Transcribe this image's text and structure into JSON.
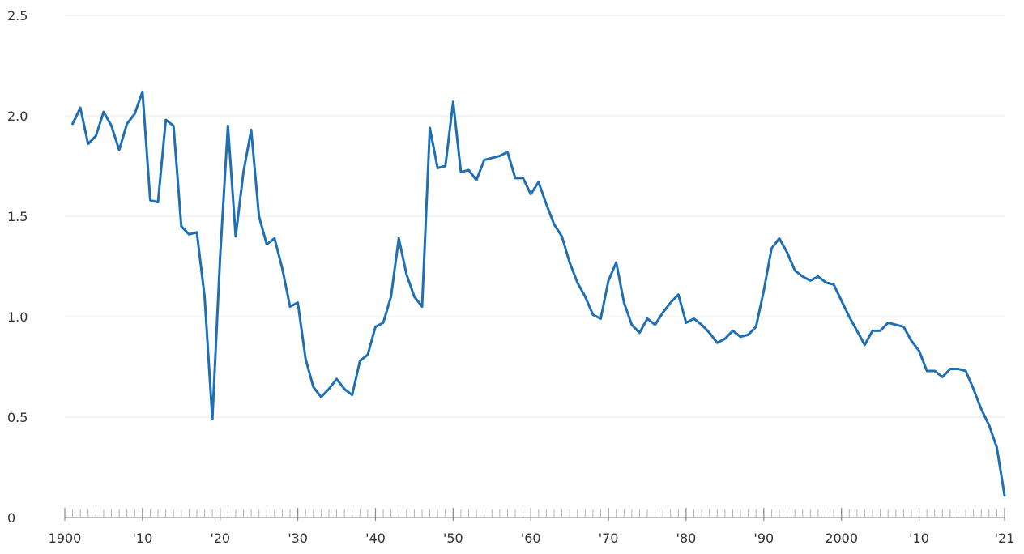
{
  "chart_data": {
    "type": "line",
    "title": "",
    "xlabel": "",
    "ylabel": "",
    "xlim": [
      1900,
      2021
    ],
    "ylim": [
      0,
      2.5
    ],
    "grid": true,
    "legend": "none",
    "line_color": "#1f6fb5",
    "y_ticks": [
      {
        "value": 0,
        "label": "0"
      },
      {
        "value": 0.5,
        "label": "0.5"
      },
      {
        "value": 1.0,
        "label": "1.0"
      },
      {
        "value": 1.5,
        "label": "1.5"
      },
      {
        "value": 2.0,
        "label": "2.0"
      },
      {
        "value": 2.5,
        "label": "2.5"
      }
    ],
    "x_ticks": [
      {
        "value": 1900,
        "label": "1900"
      },
      {
        "value": 1910,
        "label": "'10"
      },
      {
        "value": 1920,
        "label": "'20"
      },
      {
        "value": 1930,
        "label": "'30"
      },
      {
        "value": 1940,
        "label": "'40"
      },
      {
        "value": 1950,
        "label": "'50"
      },
      {
        "value": 1960,
        "label": "'60"
      },
      {
        "value": 1970,
        "label": "'70"
      },
      {
        "value": 1980,
        "label": "'80"
      },
      {
        "value": 1990,
        "label": "'90"
      },
      {
        "value": 2000,
        "label": "2000"
      },
      {
        "value": 2010,
        "label": "'10"
      },
      {
        "value": 2021,
        "label": "'21"
      }
    ],
    "series": [
      {
        "x": [
          1901,
          1902,
          1903,
          1904,
          1905,
          1906,
          1907,
          1908,
          1909,
          1910,
          1911,
          1912,
          1913,
          1914,
          1915,
          1916,
          1917,
          1918,
          1919,
          1920,
          1921,
          1922,
          1923,
          1924,
          1925,
          1926,
          1927,
          1928,
          1929,
          1930,
          1931,
          1932,
          1933,
          1934,
          1935,
          1936,
          1937,
          1938,
          1939,
          1940,
          1941,
          1942,
          1943,
          1944,
          1945,
          1946,
          1947,
          1948,
          1949,
          1950,
          1951,
          1952,
          1953,
          1954,
          1955,
          1956,
          1957,
          1958,
          1959,
          1960,
          1961,
          1962,
          1963,
          1964,
          1965,
          1966,
          1967,
          1968,
          1969,
          1970,
          1971,
          1972,
          1973,
          1974,
          1975,
          1976,
          1977,
          1978,
          1979,
          1980,
          1981,
          1982,
          1983,
          1984,
          1985,
          1986,
          1987,
          1988,
          1989,
          1990,
          1991,
          1992,
          1993,
          1994,
          1995,
          1996,
          1997,
          1998,
          1999,
          2000,
          2001,
          2002,
          2003,
          2004,
          2005,
          2006,
          2007,
          2008,
          2009,
          2010,
          2011,
          2012,
          2013,
          2014,
          2015,
          2016,
          2017,
          2018,
          2019,
          2020,
          2021
        ],
        "values": [
          1.96,
          2.04,
          1.86,
          1.9,
          2.02,
          1.95,
          1.83,
          1.96,
          2.01,
          2.12,
          1.58,
          1.57,
          1.98,
          1.95,
          1.45,
          1.41,
          1.42,
          1.1,
          0.49,
          1.3,
          1.95,
          1.4,
          1.72,
          1.93,
          1.5,
          1.36,
          1.39,
          1.24,
          1.05,
          1.07,
          0.79,
          0.65,
          0.6,
          0.64,
          0.69,
          0.64,
          0.61,
          0.78,
          0.81,
          0.95,
          0.97,
          1.1,
          1.39,
          1.21,
          1.1,
          1.05,
          1.94,
          1.74,
          1.75,
          2.07,
          1.72,
          1.73,
          1.68,
          1.78,
          1.79,
          1.8,
          1.82,
          1.69,
          1.69,
          1.61,
          1.67,
          1.56,
          1.46,
          1.4,
          1.27,
          1.17,
          1.1,
          1.01,
          0.99,
          1.18,
          1.27,
          1.07,
          0.96,
          0.92,
          0.99,
          0.96,
          1.02,
          1.07,
          1.11,
          0.97,
          0.99,
          0.96,
          0.92,
          0.87,
          0.89,
          0.93,
          0.9,
          0.91,
          0.95,
          1.13,
          1.34,
          1.39,
          1.32,
          1.23,
          1.2,
          1.18,
          1.2,
          1.17,
          1.16,
          1.08,
          1.0,
          0.93,
          0.86,
          0.93,
          0.93,
          0.97,
          0.96,
          0.95,
          0.88,
          0.83,
          0.73,
          0.73,
          0.7,
          0.74,
          0.74,
          0.73,
          0.64,
          0.54,
          0.46,
          0.35,
          0.11
        ]
      }
    ]
  }
}
